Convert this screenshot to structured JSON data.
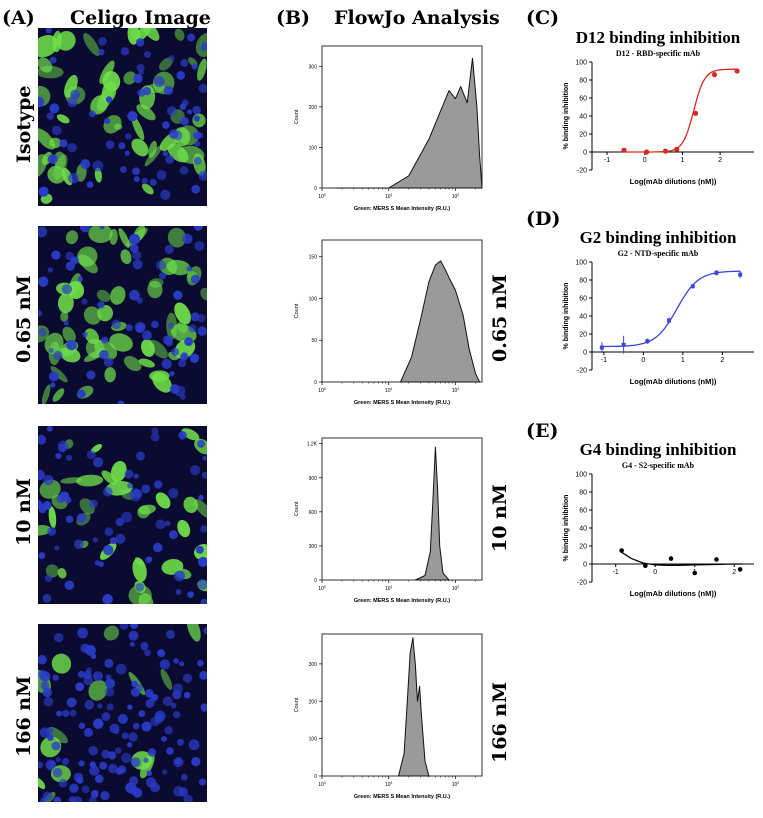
{
  "panels": {
    "A": {
      "letter": "(A)",
      "title": "Celigo Image",
      "rows": [
        "Isotype",
        "0.65 nM",
        "10 nM",
        "166 nM"
      ]
    },
    "B": {
      "letter": "(B)",
      "title": "FlowJo Analysis",
      "right_labels": [
        "0.65 nM",
        "10 nM",
        "166 nM"
      ]
    },
    "C": {
      "letter": "(C)",
      "title": "D12 binding inhibition",
      "subtitle": "D12 - RBD-specific mAb"
    },
    "D": {
      "letter": "(D)",
      "title": "G2 binding inhibition",
      "subtitle": "G2 - NTD-specific mAb"
    },
    "E": {
      "letter": "(E)",
      "title": "G4 binding inhibition",
      "subtitle": "G4 - S2-specific mAb"
    }
  },
  "colors": {
    "C_curve": "#d62a1e",
    "D_curve": "#3b45d8",
    "E_curve": "#000000",
    "histogram_fill": "#9a9a9a",
    "cell_green": "#6fe04a",
    "nucleus_blue": "#2a3cc8"
  },
  "chart_data": [
    {
      "type": "area",
      "panel": "B-Isotype",
      "xlabel": "Green: MERS S Mean Intensity (R.U.)",
      "ylabel": "Count",
      "xscale": "log",
      "xticks": [
        "10^0",
        "10^1",
        "10^2"
      ],
      "xlim": [
        1,
        250
      ],
      "yticks": [
        0,
        100,
        200,
        300
      ],
      "ylim": [
        0,
        350
      ],
      "x": [
        1.6,
        2,
        3,
        5,
        10,
        20,
        40,
        60,
        80,
        100,
        120,
        150,
        180,
        210,
        230,
        250
      ],
      "y": [
        0,
        0,
        0,
        0,
        0,
        30,
        120,
        190,
        240,
        220,
        250,
        210,
        320,
        200,
        80,
        0
      ]
    },
    {
      "type": "area",
      "panel": "B-0.65nM",
      "xlabel": "Green: MERS S Mean Intensity (R.U.)",
      "ylabel": "Count",
      "xscale": "log",
      "xticks": [
        "10^0",
        "10^1",
        "10^2"
      ],
      "xlim": [
        1,
        250
      ],
      "yticks": [
        0,
        50,
        100,
        150
      ],
      "ylim": [
        0,
        170
      ],
      "x": [
        15,
        22,
        30,
        40,
        50,
        60,
        70,
        80,
        100,
        130,
        160,
        200,
        230
      ],
      "y": [
        0,
        30,
        75,
        120,
        140,
        145,
        135,
        125,
        110,
        80,
        40,
        10,
        0
      ]
    },
    {
      "type": "area",
      "panel": "B-10nM",
      "xlabel": "Green: MERS S Mean Intensity (R.U.)",
      "ylabel": "Count",
      "xscale": "log",
      "xticks": [
        "10^0",
        "10^1",
        "10^2"
      ],
      "xlim": [
        1,
        250
      ],
      "yticks": [
        "0",
        "300",
        "600",
        "900",
        "1.2K"
      ],
      "ylim": [
        0,
        1250
      ],
      "x": [
        25,
        35,
        42,
        46,
        50,
        54,
        58,
        65,
        80
      ],
      "y": [
        0,
        40,
        250,
        700,
        1170,
        800,
        300,
        60,
        0
      ]
    },
    {
      "type": "area",
      "panel": "B-166nM",
      "xlabel": "Green: MERS S Mean Intensity (R.U.)",
      "ylabel": "Count",
      "xscale": "log",
      "xticks": [
        "10^0",
        "10^1",
        "10^2"
      ],
      "xlim": [
        1,
        250
      ],
      "yticks": [
        0,
        100,
        200,
        300
      ],
      "ylim": [
        0,
        380
      ],
      "x": [
        14,
        17,
        19,
        21,
        23,
        25,
        27,
        29,
        31,
        35,
        40
      ],
      "y": [
        0,
        60,
        200,
        330,
        370,
        300,
        200,
        240,
        160,
        40,
        0
      ]
    },
    {
      "type": "line",
      "panel": "C",
      "xlabel": "Log(mAb dilutions (nM))",
      "ylabel": "% binding inhibition",
      "xlim": [
        -1.4,
        2.9
      ],
      "ylim": [
        -20,
        100
      ],
      "xticks": [
        -1,
        0,
        1,
        2
      ],
      "yticks": [
        -20,
        0,
        20,
        40,
        60,
        80,
        100
      ],
      "points_x": [
        -0.55,
        0.05,
        0.55,
        0.85,
        1.35,
        1.85,
        2.45
      ],
      "points_y": [
        2,
        0,
        1,
        3,
        43,
        86,
        90
      ],
      "fit": {
        "bottom": 0,
        "top": 92,
        "logEC50": 1.3,
        "hill": 3.0
      }
    },
    {
      "type": "line",
      "panel": "D",
      "xlabel": "Log(mAb dilutions (nM))",
      "ylabel": "% binding inhibition",
      "xlim": [
        -1.3,
        2.8
      ],
      "ylim": [
        -20,
        100
      ],
      "xticks": [
        -1,
        0,
        1,
        2
      ],
      "yticks": [
        -20,
        0,
        20,
        40,
        60,
        80,
        100
      ],
      "points_x": [
        -1.05,
        -0.5,
        0.1,
        0.65,
        1.25,
        1.85,
        2.45
      ],
      "points_y": [
        5,
        8,
        12,
        35,
        73,
        88,
        86
      ],
      "errors": [
        6,
        10,
        3,
        3,
        2,
        3,
        4
      ],
      "fit": {
        "bottom": 6,
        "top": 90,
        "logEC50": 0.85,
        "hill": 1.6
      }
    },
    {
      "type": "scatter",
      "panel": "E",
      "xlabel": "Log(mAb dilutions (nM))",
      "ylabel": "% binding inhibition",
      "xlim": [
        -1.6,
        2.5
      ],
      "ylim": [
        -20,
        100
      ],
      "xticks": [
        -1,
        0,
        1,
        2
      ],
      "yticks": [
        -20,
        0,
        20,
        40,
        60,
        80,
        100
      ],
      "points_x": [
        -0.85,
        -0.25,
        0.4,
        1.0,
        1.55,
        2.15
      ],
      "points_y": [
        15,
        -2,
        6,
        -10,
        5,
        -6
      ],
      "fit_x": [
        -0.85,
        -0.6,
        -0.3,
        0,
        0.3,
        0.6,
        1.0,
        1.5,
        2.0,
        2.2
      ],
      "fit_y": [
        13,
        6,
        1,
        -1,
        -1.5,
        -1.5,
        -1,
        -0.5,
        0,
        0
      ]
    }
  ]
}
